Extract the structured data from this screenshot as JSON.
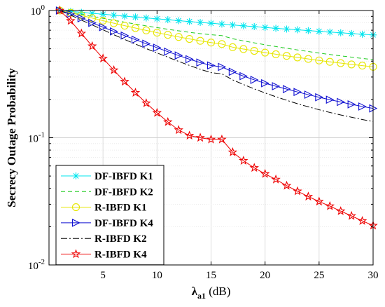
{
  "chart_data": {
    "type": "line",
    "title": "",
    "xlabel_main": "λ",
    "xlabel_sub": "a1",
    "xlabel_unit": " (dB)",
    "ylabel": "Secrecy Outage Probability",
    "xlim": [
      0,
      30
    ],
    "ylim": [
      0.01,
      1
    ],
    "yscale": "log",
    "grid": true,
    "legend_position": "bottom-left",
    "x_ticks": [
      5,
      10,
      15,
      20,
      25,
      30
    ],
    "x_tick_labels": [
      "5",
      "10",
      "15",
      "20",
      "25",
      "30"
    ],
    "y_ticks": [
      {
        "value": 1,
        "base": "10",
        "exp": "0"
      },
      {
        "value": 0.1,
        "base": "10",
        "exp": "-1"
      },
      {
        "value": 0.01,
        "base": "10",
        "exp": "-2"
      }
    ],
    "x": [
      1,
      2,
      3,
      4,
      5,
      6,
      7,
      8,
      9,
      10,
      11,
      12,
      13,
      14,
      15,
      16,
      17,
      18,
      19,
      20,
      21,
      22,
      23,
      24,
      25,
      26,
      27,
      28,
      29,
      30
    ],
    "series": [
      {
        "name": "DF-IBFD K1",
        "color": "#00e5ee",
        "dash": "",
        "marker": "asterisk",
        "values": [
          1.0,
          0.985,
          0.968,
          0.951,
          0.935,
          0.919,
          0.904,
          0.889,
          0.874,
          0.86,
          0.846,
          0.832,
          0.819,
          0.806,
          0.794,
          0.782,
          0.77,
          0.758,
          0.747,
          0.736,
          0.725,
          0.715,
          0.705,
          0.695,
          0.686,
          0.677,
          0.668,
          0.659,
          0.651,
          0.643
        ]
      },
      {
        "name": "DF-IBFD K2",
        "color": "#22cc22",
        "dash": "6,4",
        "marker": "none",
        "values": [
          1.0,
          0.97,
          0.935,
          0.9,
          0.868,
          0.838,
          0.81,
          0.782,
          0.757,
          0.734,
          0.712,
          0.692,
          0.674,
          0.658,
          0.645,
          0.635,
          0.6,
          0.577,
          0.557,
          0.538,
          0.521,
          0.505,
          0.49,
          0.476,
          0.463,
          0.451,
          0.44,
          0.43,
          0.42,
          0.411
        ]
      },
      {
        "name": "R-IBFD K1",
        "color": "#e6e600",
        "dash": "",
        "marker": "circle",
        "values": [
          1.0,
          0.96,
          0.915,
          0.872,
          0.832,
          0.795,
          0.76,
          0.728,
          0.698,
          0.67,
          0.644,
          0.62,
          0.598,
          0.578,
          0.56,
          0.545,
          0.515,
          0.498,
          0.482,
          0.467,
          0.453,
          0.44,
          0.428,
          0.416,
          0.405,
          0.395,
          0.386,
          0.377,
          0.369,
          0.361
        ]
      },
      {
        "name": "DF-IBFD K4",
        "color": "#1010d0",
        "dash": "",
        "marker": "triangle-right",
        "values": [
          1.0,
          0.94,
          0.87,
          0.8,
          0.74,
          0.685,
          0.635,
          0.59,
          0.548,
          0.51,
          0.475,
          0.443,
          0.414,
          0.39,
          0.37,
          0.36,
          0.33,
          0.305,
          0.285,
          0.268,
          0.254,
          0.241,
          0.229,
          0.218,
          0.208,
          0.199,
          0.191,
          0.183,
          0.176,
          0.17
        ]
      },
      {
        "name": "R-IBFD K2",
        "color": "#000000",
        "dash": "9,3,2,3",
        "marker": "none",
        "values": [
          1.0,
          0.92,
          0.84,
          0.77,
          0.705,
          0.645,
          0.592,
          0.545,
          0.502,
          0.464,
          0.43,
          0.398,
          0.37,
          0.345,
          0.325,
          0.318,
          0.285,
          0.262,
          0.242,
          0.225,
          0.21,
          0.197,
          0.185,
          0.175,
          0.166,
          0.158,
          0.151,
          0.145,
          0.139,
          0.134
        ]
      },
      {
        "name": "R-IBFD K4",
        "color": "#ee0000",
        "dash": "",
        "marker": "star",
        "values": [
          1.0,
          0.83,
          0.66,
          0.525,
          0.42,
          0.34,
          0.276,
          0.226,
          0.187,
          0.157,
          0.133,
          0.115,
          0.104,
          0.1,
          0.097,
          0.097,
          0.077,
          0.066,
          0.058,
          0.052,
          0.047,
          0.042,
          0.038,
          0.0345,
          0.0315,
          0.029,
          0.0265,
          0.0243,
          0.0222,
          0.0204
        ]
      }
    ]
  }
}
